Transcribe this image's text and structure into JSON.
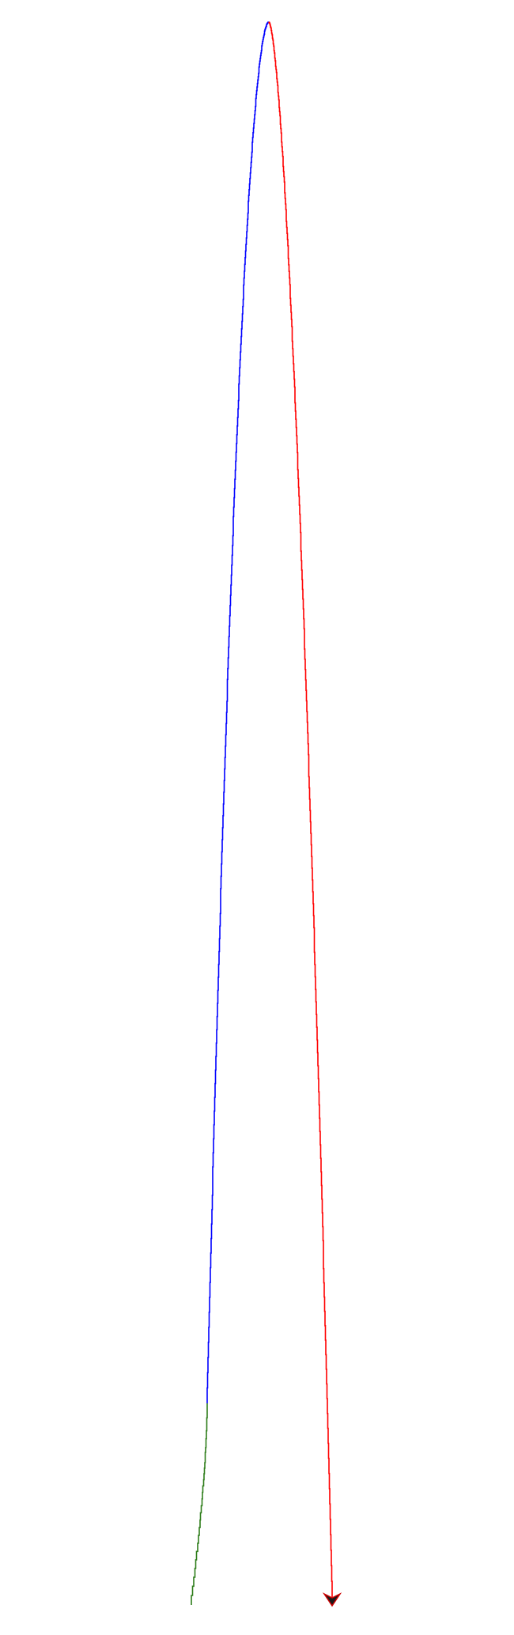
{
  "colors": {
    "background": "#ffffff",
    "ascent": "#0000ff",
    "start": "#2e7d1a",
    "descent": "#ff0000",
    "arrowhead_fill": "#1a1a1a",
    "arrowhead_stroke": "#cc0000"
  },
  "icons": {
    "end_marker": "arrowhead-down-icon"
  }
}
